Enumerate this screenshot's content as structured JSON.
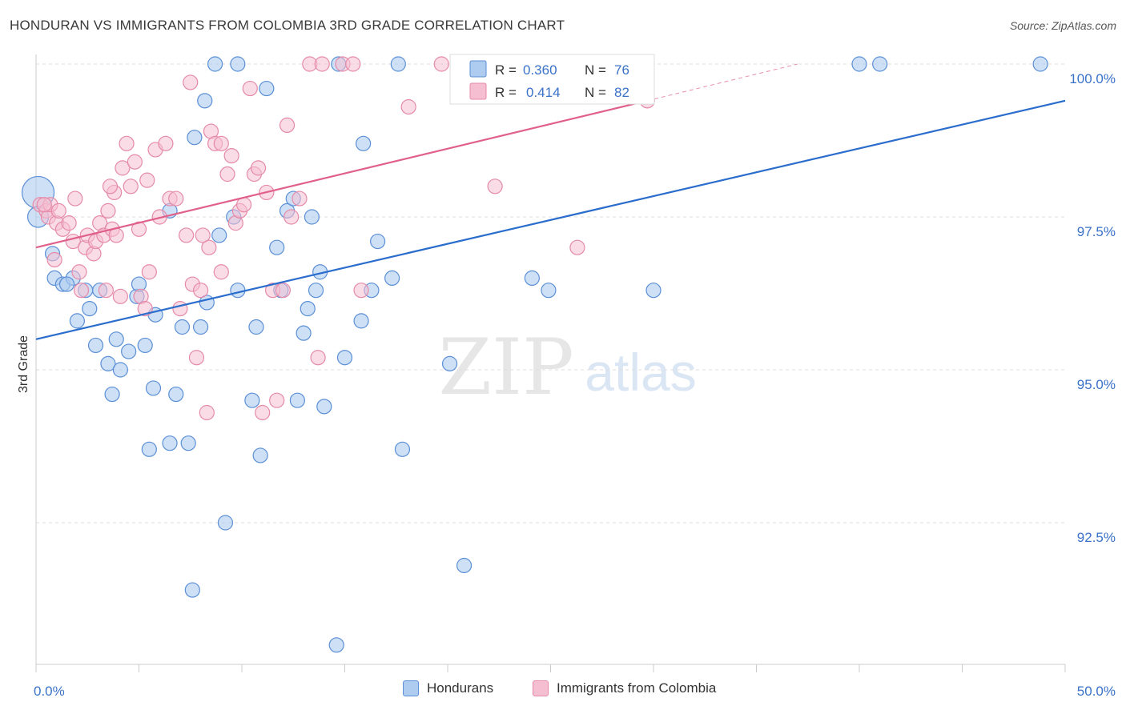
{
  "title": "HONDURAN VS IMMIGRANTS FROM COLOMBIA 3RD GRADE CORRELATION CHART",
  "source": "Source: ZipAtlas.com",
  "watermark": {
    "zip": "ZIP",
    "atlas": "atlas"
  },
  "legend_top": [
    {
      "r_label": "R =",
      "r_value": "0.360",
      "n_label": "N =",
      "n_value": "76"
    },
    {
      "r_label": "R =",
      "r_value": "0.414",
      "n_label": "N =",
      "n_value": "82"
    }
  ],
  "legend_bottom": [
    "Hondurans",
    "Immigrants from Colombia"
  ],
  "colors": {
    "blue_fill": "#aecbf0",
    "blue_stroke": "#5b8fd6",
    "blue_line": "#2a6dcc",
    "pink_fill": "#f6bfd1",
    "pink_stroke": "#e58aa8",
    "pink_line": "#e0608a",
    "value_text": "#3a72c8",
    "grid": "#dddddd"
  },
  "chart_data": {
    "type": "scatter",
    "title": "HONDURAN VS IMMIGRANTS FROM COLOMBIA 3RD GRADE CORRELATION CHART",
    "xlabel": "",
    "ylabel": "3rd Grade",
    "xlim": [
      0,
      50
    ],
    "ylim": [
      90.5,
      100.3
    ],
    "x_tick_labels": [
      "0.0%",
      "50.0%"
    ],
    "y_ticks": [
      92.5,
      95.0,
      97.5,
      100.0
    ],
    "y_tick_labels": [
      "92.5%",
      "95.0%",
      "97.5%",
      "100.0%"
    ],
    "grid": true,
    "series": [
      {
        "name": "Hondurans",
        "r": 0.36,
        "n": 76,
        "trend": {
          "x": [
            0,
            50
          ],
          "y": [
            95.5,
            99.4
          ]
        },
        "points": [
          [
            0.1,
            97.9
          ],
          [
            0.1,
            97.5
          ],
          [
            0.8,
            96.9
          ],
          [
            0.9,
            96.5
          ],
          [
            1.3,
            96.4
          ],
          [
            1.8,
            96.5
          ],
          [
            2.4,
            96.3
          ],
          [
            2.0,
            95.8
          ],
          [
            2.6,
            96.0
          ],
          [
            3.1,
            96.3
          ],
          [
            2.9,
            95.4
          ],
          [
            3.5,
            95.1
          ],
          [
            3.9,
            95.5
          ],
          [
            4.1,
            95.0
          ],
          [
            3.7,
            94.6
          ],
          [
            4.5,
            95.3
          ],
          [
            4.9,
            96.2
          ],
          [
            5.0,
            96.4
          ],
          [
            5.3,
            95.4
          ],
          [
            5.8,
            95.9
          ],
          [
            5.7,
            94.7
          ],
          [
            5.5,
            93.7
          ],
          [
            6.5,
            97.6
          ],
          [
            6.5,
            93.8
          ],
          [
            6.8,
            94.6
          ],
          [
            7.1,
            95.7
          ],
          [
            7.4,
            93.8
          ],
          [
            7.7,
            98.8
          ],
          [
            8.0,
            95.7
          ],
          [
            8.2,
            99.4
          ],
          [
            8.3,
            96.1
          ],
          [
            8.7,
            100.0
          ],
          [
            8.9,
            97.2
          ],
          [
            9.2,
            92.5
          ],
          [
            9.6,
            97.5
          ],
          [
            9.8,
            96.3
          ],
          [
            9.8,
            100.0
          ],
          [
            10.5,
            94.5
          ],
          [
            10.7,
            95.7
          ],
          [
            10.9,
            93.6
          ],
          [
            11.7,
            97.0
          ],
          [
            11.9,
            96.3
          ],
          [
            12.2,
            97.6
          ],
          [
            12.5,
            97.8
          ],
          [
            12.7,
            94.5
          ],
          [
            13.0,
            95.6
          ],
          [
            13.2,
            96.0
          ],
          [
            13.4,
            97.5
          ],
          [
            13.6,
            96.3
          ],
          [
            13.8,
            96.6
          ],
          [
            14.0,
            94.4
          ],
          [
            14.7,
            100.0
          ],
          [
            15.0,
            95.2
          ],
          [
            15.8,
            95.8
          ],
          [
            15.9,
            98.7
          ],
          [
            16.3,
            96.3
          ],
          [
            16.6,
            97.1
          ],
          [
            17.3,
            96.5
          ],
          [
            17.6,
            100.0
          ],
          [
            17.8,
            93.7
          ],
          [
            20.1,
            95.1
          ],
          [
            20.8,
            91.8
          ],
          [
            21.1,
            100.0
          ],
          [
            22.3,
            100.0
          ],
          [
            24.1,
            96.5
          ],
          [
            24.9,
            96.3
          ],
          [
            27.5,
            100.0
          ],
          [
            28.6,
            100.0
          ],
          [
            30.0,
            96.3
          ],
          [
            40.0,
            100.0
          ],
          [
            41.0,
            100.0
          ],
          [
            48.8,
            100.0
          ],
          [
            7.6,
            91.4
          ],
          [
            14.6,
            90.5
          ],
          [
            11.2,
            99.6
          ],
          [
            1.5,
            96.4
          ]
        ]
      },
      {
        "name": "Immigrants from Colombia",
        "r": 0.414,
        "n": 82,
        "trend": {
          "x": [
            0,
            29.7
          ],
          "y": [
            97.0,
            99.4
          ]
        },
        "trend_extension": {
          "x": [
            29.7,
            37.0
          ],
          "y": [
            99.4,
            100.0
          ]
        },
        "points": [
          [
            0.2,
            97.7
          ],
          [
            0.5,
            97.6
          ],
          [
            0.6,
            97.5
          ],
          [
            0.7,
            97.7
          ],
          [
            0.9,
            96.8
          ],
          [
            1.0,
            97.4
          ],
          [
            1.3,
            97.3
          ],
          [
            1.6,
            97.4
          ],
          [
            1.8,
            97.1
          ],
          [
            1.9,
            97.8
          ],
          [
            2.1,
            96.6
          ],
          [
            2.2,
            96.3
          ],
          [
            2.4,
            97.0
          ],
          [
            2.5,
            97.2
          ],
          [
            2.8,
            96.9
          ],
          [
            2.9,
            97.1
          ],
          [
            3.1,
            97.4
          ],
          [
            3.3,
            97.2
          ],
          [
            3.4,
            96.3
          ],
          [
            3.5,
            97.6
          ],
          [
            3.7,
            97.3
          ],
          [
            3.8,
            97.9
          ],
          [
            3.9,
            97.2
          ],
          [
            4.1,
            96.2
          ],
          [
            4.2,
            98.3
          ],
          [
            4.4,
            98.7
          ],
          [
            4.6,
            98.0
          ],
          [
            4.8,
            98.4
          ],
          [
            5.0,
            97.3
          ],
          [
            5.1,
            96.2
          ],
          [
            5.3,
            96.0
          ],
          [
            5.4,
            98.1
          ],
          [
            5.5,
            96.6
          ],
          [
            5.8,
            98.6
          ],
          [
            6.0,
            97.5
          ],
          [
            6.3,
            98.7
          ],
          [
            6.5,
            97.8
          ],
          [
            6.8,
            97.8
          ],
          [
            7.0,
            96.0
          ],
          [
            7.3,
            97.2
          ],
          [
            7.5,
            99.7
          ],
          [
            7.6,
            96.4
          ],
          [
            7.8,
            95.2
          ],
          [
            8.0,
            96.3
          ],
          [
            8.1,
            97.2
          ],
          [
            8.3,
            94.3
          ],
          [
            8.5,
            98.9
          ],
          [
            8.7,
            98.7
          ],
          [
            9.0,
            98.7
          ],
          [
            9.3,
            98.2
          ],
          [
            9.5,
            98.5
          ],
          [
            9.7,
            97.4
          ],
          [
            9.9,
            97.6
          ],
          [
            10.1,
            97.7
          ],
          [
            10.4,
            99.6
          ],
          [
            10.6,
            98.2
          ],
          [
            10.8,
            98.3
          ],
          [
            11.0,
            94.3
          ],
          [
            11.2,
            97.9
          ],
          [
            11.5,
            96.3
          ],
          [
            11.7,
            94.5
          ],
          [
            12.0,
            96.3
          ],
          [
            12.2,
            99.0
          ],
          [
            12.4,
            97.5
          ],
          [
            12.8,
            97.8
          ],
          [
            13.3,
            100.0
          ],
          [
            13.9,
            100.0
          ],
          [
            14.9,
            100.0
          ],
          [
            15.4,
            100.0
          ],
          [
            15.8,
            96.3
          ],
          [
            18.1,
            99.3
          ],
          [
            19.7,
            100.0
          ],
          [
            22.3,
            98.0
          ],
          [
            26.2,
            100.0
          ],
          [
            29.7,
            99.4
          ],
          [
            26.3,
            97.0
          ],
          [
            13.7,
            95.2
          ],
          [
            9.0,
            96.6
          ],
          [
            0.4,
            97.7
          ],
          [
            1.1,
            97.6
          ],
          [
            3.6,
            98.0
          ],
          [
            8.4,
            97.0
          ]
        ]
      }
    ]
  }
}
